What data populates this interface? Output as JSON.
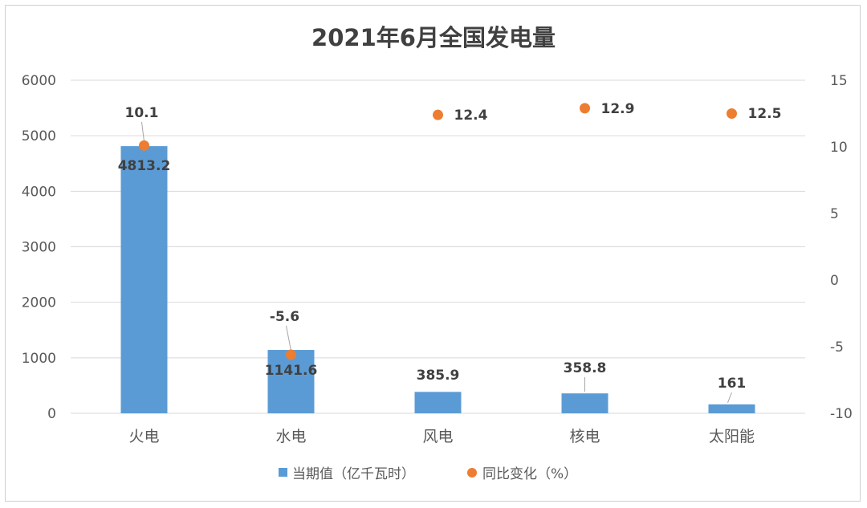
{
  "chart_data": {
    "type": "bar+scatter",
    "title": "2021年6月全国发电量",
    "categories": [
      "火电",
      "水电",
      "风电",
      "核电",
      "太阳能"
    ],
    "series": [
      {
        "name": "当期值（亿千瓦时）",
        "type": "bar",
        "axis": "left",
        "color": "#5b9bd5",
        "values": [
          4813.2,
          1141.6,
          385.9,
          358.8,
          161
        ],
        "labels": [
          "4813.2",
          "1141.6",
          "385.9",
          "358.8",
          "161"
        ]
      },
      {
        "name": "同比变化（%）",
        "type": "scatter",
        "axis": "right",
        "color": "#ed7d31",
        "values": [
          10.1,
          -5.6,
          12.4,
          12.9,
          12.5
        ],
        "labels": [
          "10.1",
          "-5.6",
          "12.4",
          "12.9",
          "12.5"
        ]
      }
    ],
    "y_left": {
      "min": 0,
      "max": 6000,
      "ticks": [
        0,
        1000,
        2000,
        3000,
        4000,
        5000,
        6000
      ]
    },
    "y_right": {
      "min": -10,
      "max": 15,
      "ticks": [
        -10,
        -5,
        0,
        5,
        10,
        15
      ]
    },
    "grid": true,
    "legend_position": "bottom"
  }
}
